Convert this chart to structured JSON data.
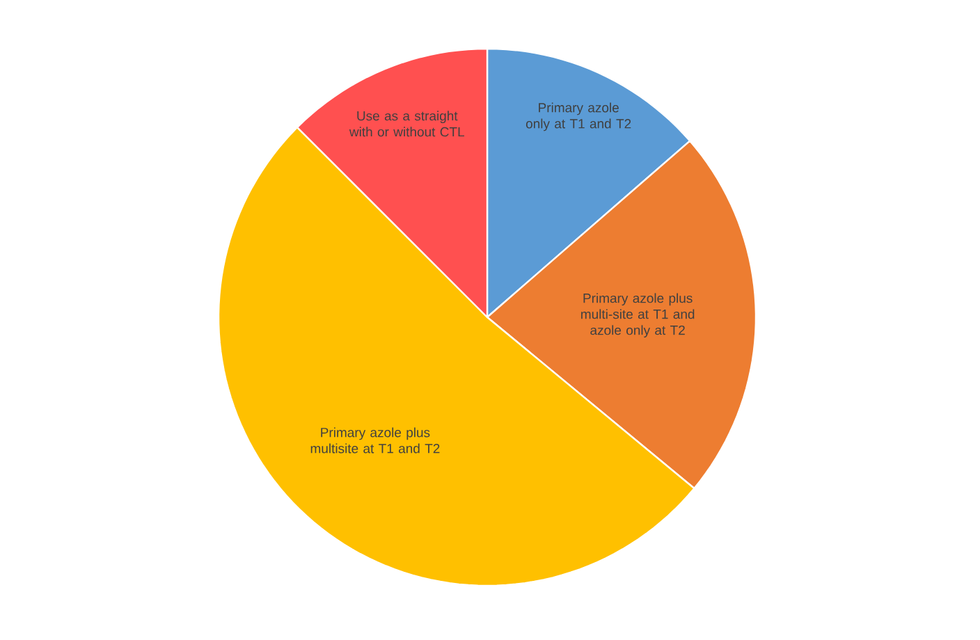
{
  "chart_data": {
    "type": "pie",
    "categories": [
      "Primary azole only at T1 and T2",
      "Primary azole plus multi-site at T1 and azole only at T2",
      "Primary azole plus multisite at T1 and T2",
      "Use as a straight with or without CTL"
    ],
    "values": [
      13.6,
      22.4,
      51.5,
      12.5
    ],
    "colors": [
      "#5b9bd5",
      "#ed7d31",
      "#ffc000",
      "#ff5050"
    ]
  }
}
